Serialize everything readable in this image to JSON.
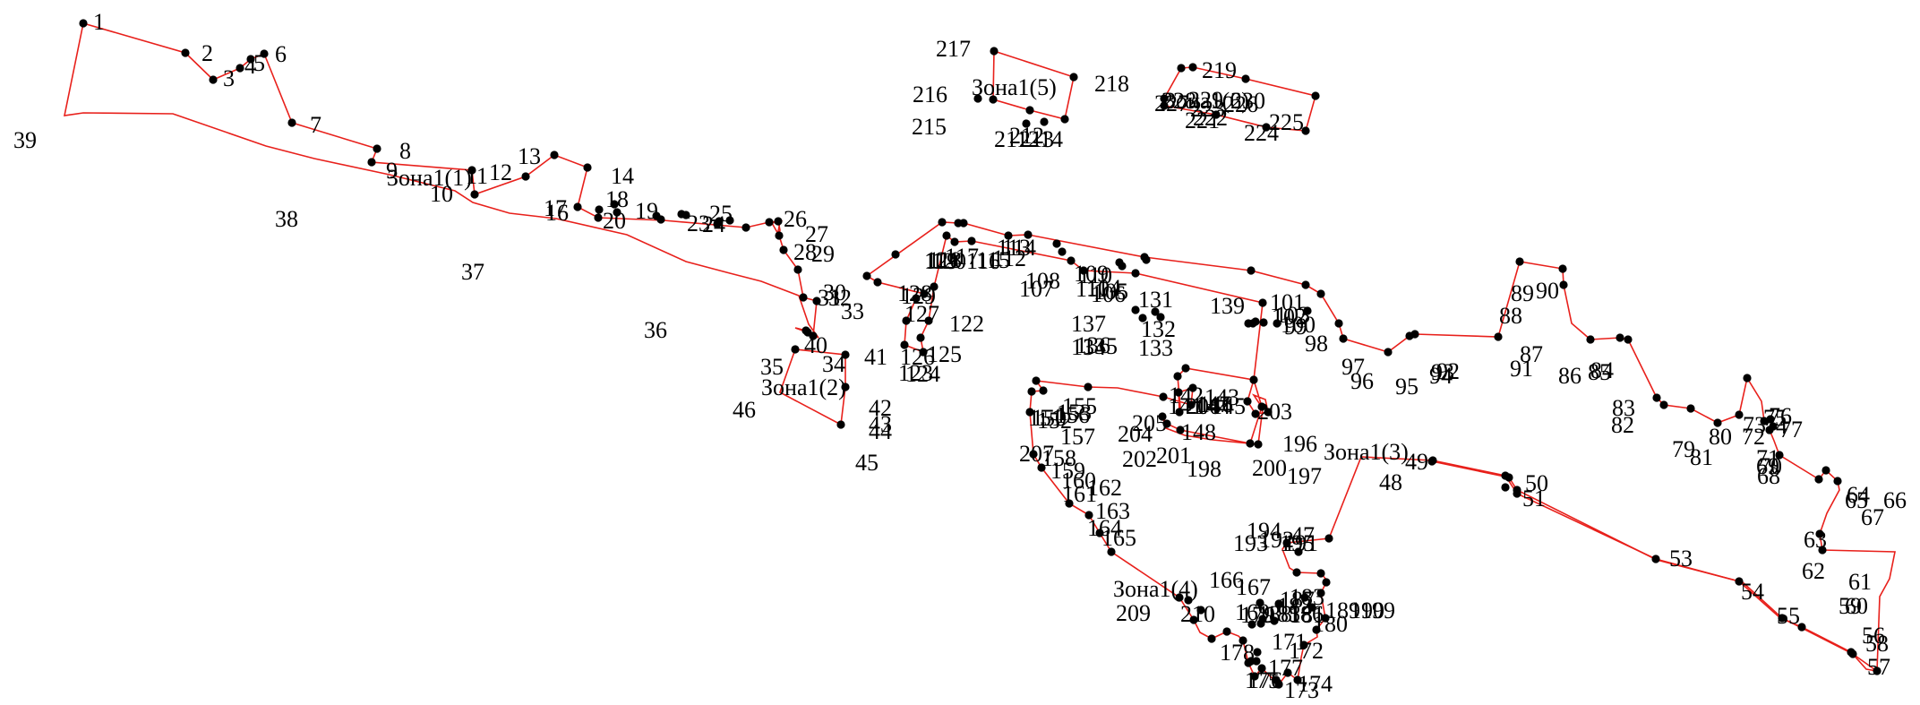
{
  "colors": {
    "boundary": "#e8201b",
    "point": "#000000",
    "text": "#000000",
    "background": "#ffffff"
  },
  "zones": [
    {
      "id": "zone1",
      "label": "Зона1(1)"
    },
    {
      "id": "zone2",
      "label": "Зона1(2)"
    },
    {
      "id": "zone3",
      "label": "Зона1(3)"
    },
    {
      "id": "zone4",
      "label": "Зона1(4)"
    },
    {
      "id": "zone5",
      "label": "Зона1(5)"
    },
    {
      "id": "zone6",
      "label": "Зона1(6)"
    }
  ],
  "point_labels": [
    "1",
    "2",
    "3",
    "4",
    "5",
    "6",
    "7",
    "8",
    "9",
    "10",
    "11",
    "12",
    "13",
    "14",
    "16",
    "17",
    "18",
    "19",
    "20",
    "23",
    "24",
    "25",
    "26",
    "27",
    "28",
    "29",
    "30",
    "31",
    "32",
    "33",
    "34",
    "35",
    "36",
    "37",
    "38",
    "39",
    "40",
    "41",
    "42",
    "43",
    "44",
    "45",
    "46",
    "47",
    "48",
    "49",
    "50",
    "51",
    "53",
    "54",
    "55",
    "56",
    "57",
    "58",
    "59",
    "60",
    "61",
    "62",
    "63",
    "64",
    "65",
    "66",
    "67",
    "68",
    "69",
    "70",
    "71",
    "72",
    "73",
    "74",
    "75",
    "76",
    "77",
    "79",
    "80",
    "81",
    "82",
    "83",
    "84",
    "85",
    "86",
    "87",
    "88",
    "89",
    "90",
    "91",
    "92",
    "93",
    "94",
    "95",
    "96",
    "97",
    "98",
    "99",
    "100",
    "101",
    "102",
    "103",
    "104",
    "105",
    "106",
    "107",
    "108",
    "109",
    "110",
    "111",
    "112",
    "113",
    "114",
    "115",
    "116",
    "117",
    "118",
    "119",
    "120",
    "121",
    "122",
    "123",
    "124",
    "125",
    "126",
    "127",
    "128",
    "129",
    "131",
    "132",
    "133",
    "134",
    "135",
    "136",
    "137",
    "139",
    "141",
    "142",
    "143",
    "144",
    "145",
    "146",
    "147",
    "148",
    "150",
    "151",
    "152",
    "153",
    "155",
    "156",
    "157",
    "158",
    "159",
    "160",
    "161",
    "162",
    "163",
    "164",
    "165",
    "166",
    "167",
    "169",
    "171",
    "172",
    "173",
    "174",
    "175",
    "176",
    "177",
    "178",
    "179",
    "180",
    "181",
    "182",
    "183",
    "185",
    "186",
    "187",
    "188",
    "189",
    "190",
    "191",
    "192",
    "193",
    "194",
    "195",
    "196",
    "197",
    "198",
    "199",
    "200",
    "201",
    "202",
    "203",
    "204",
    "205",
    "206",
    "207",
    "209",
    "210",
    "211",
    "212",
    "213",
    "214",
    "215",
    "216",
    "217",
    "218",
    "219",
    "221",
    "222",
    "223",
    "224",
    "225",
    "226",
    "227",
    "228",
    "229",
    "230"
  ]
}
